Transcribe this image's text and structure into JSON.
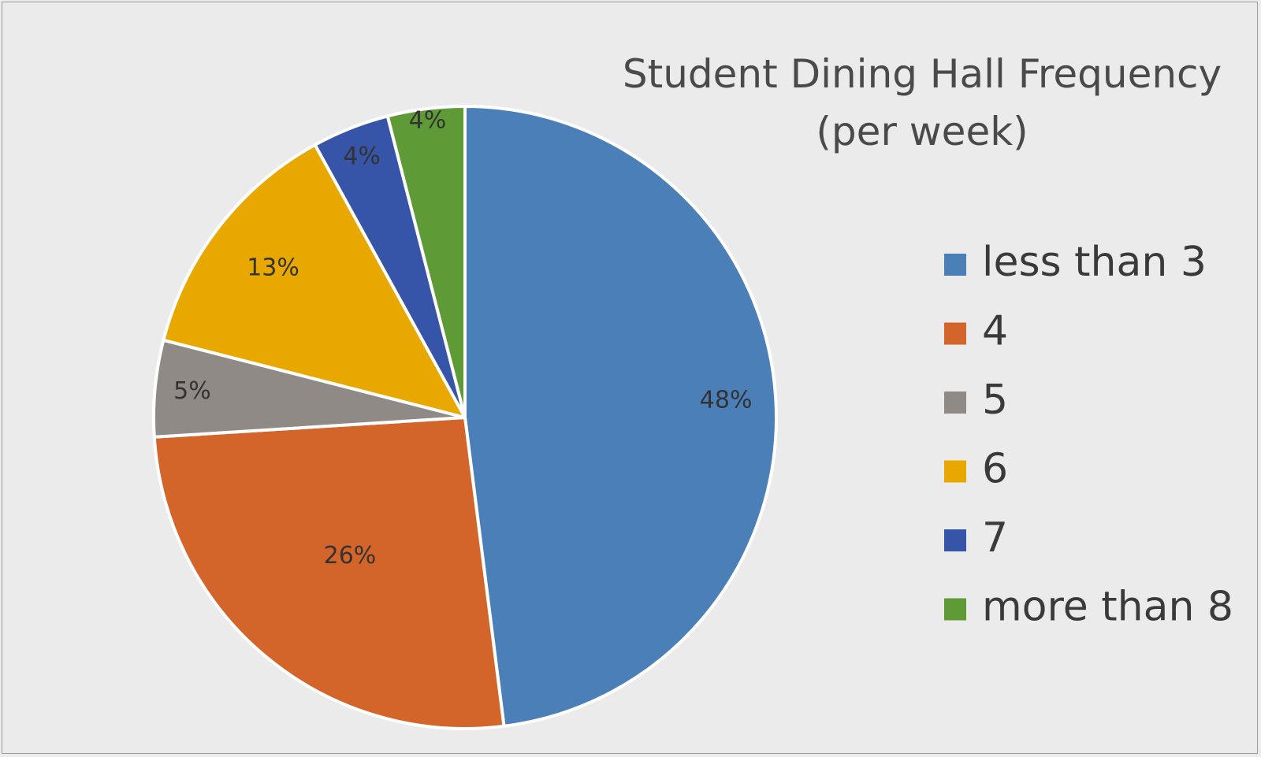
{
  "chart_data": {
    "type": "pie",
    "title": "Student Dining Hall Frequency (per week)",
    "title_lines": [
      "Student Dining Hall Frequency",
      "(per week)"
    ],
    "categories": [
      "less than 3",
      "4",
      "5",
      "6",
      "7",
      "more than 8"
    ],
    "values": [
      48,
      26,
      5,
      13,
      4,
      4
    ],
    "value_labels": [
      "48%",
      "26%",
      "5%",
      "13%",
      "4%",
      "4%"
    ],
    "unit": "%",
    "colors": [
      "#4a7fb8",
      "#d4652a",
      "#8f8a86",
      "#e8a800",
      "#3654a8",
      "#5e9a35"
    ],
    "start_angle_deg": 0,
    "direction": "clockwise",
    "legend_position": "right"
  }
}
